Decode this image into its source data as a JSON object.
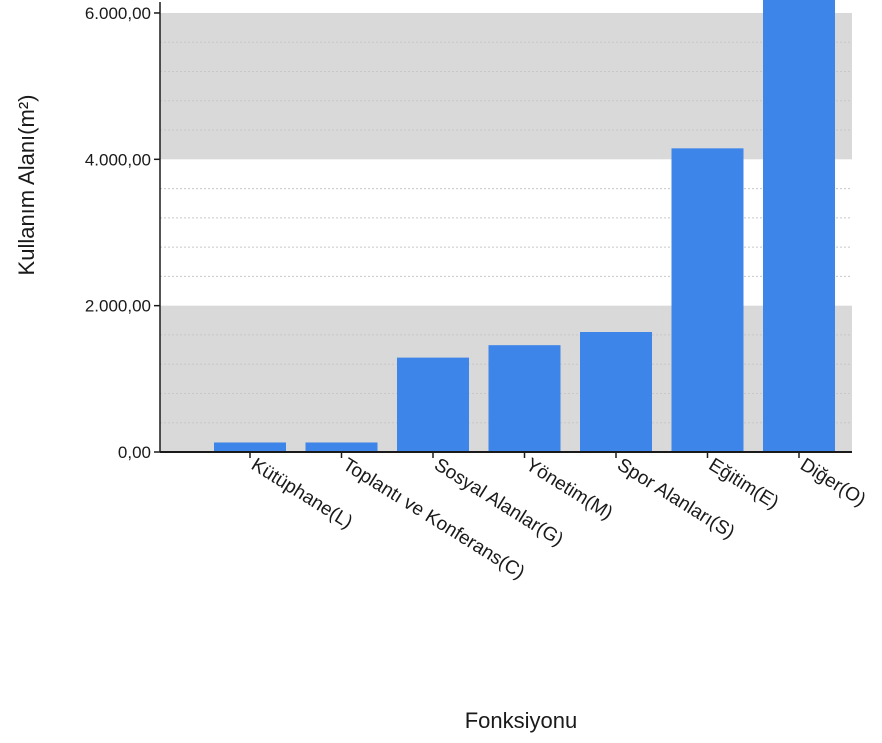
{
  "chart_data": {
    "type": "bar",
    "title": "",
    "xlabel": "Fonksiyonu",
    "ylabel": "Kullanım Alanı(m²)",
    "categories": [
      "Kütüphane(L)",
      "Toplantı ve Konferans(C)",
      "Sosyal Alanlar(G)",
      "Yönetim(M)",
      "Spor Alanları(S)",
      "Eğitim(E)",
      "Diğer(O)"
    ],
    "values": [
      130,
      130,
      1290,
      1460,
      1640,
      4150,
      6220
    ],
    "ylim": [
      0,
      6150
    ],
    "yticks": [
      0,
      2000,
      4000,
      6000
    ],
    "ytick_labels": [
      "0,00",
      "2.000,00",
      "4.000,00",
      "6.000,00"
    ],
    "grid": true,
    "legend": "none",
    "colors": {
      "bar": "#3d85e8",
      "band": "#d9d9d9",
      "gridline": "#c8c8c8",
      "axis": "#1a1a1a"
    }
  }
}
